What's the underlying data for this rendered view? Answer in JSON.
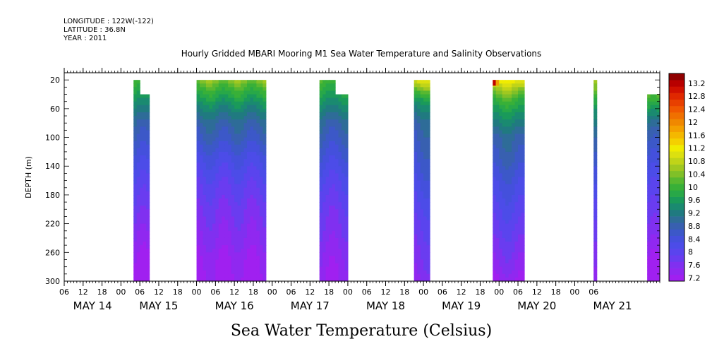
{
  "header": {
    "longitude": "LONGITUDE : 122W(-122)",
    "latitude": "LATITUDE : 36.8N",
    "year": "YEAR : 2011"
  },
  "chart_data": {
    "type": "heatmap",
    "title": "Hourly Gridded MBARI Mooring M1 Sea Water Temperature and Salinity Observations",
    "subtitle": "Sea Water Temperature (Celsius)",
    "xlabel": "",
    "ylabel": "DEPTH (m)",
    "x_range_hours": [
      0,
      189
    ],
    "ylim": [
      300,
      10
    ],
    "y_ticks": [
      20,
      60,
      100,
      140,
      180,
      220,
      260,
      300
    ],
    "hour_tick_labels": [
      "06",
      "12",
      "18",
      "00",
      "06",
      "12",
      "18",
      "00",
      "06",
      "12",
      "18",
      "00",
      "06",
      "12",
      "18",
      "00",
      "06",
      "12",
      "18",
      "00",
      "06",
      "12",
      "18",
      "00",
      "06",
      "12",
      "18",
      "00",
      "06"
    ],
    "date_labels": [
      {
        "label": "MAY 14",
        "hour": 9
      },
      {
        "label": "MAY 15",
        "hour": 30
      },
      {
        "label": "MAY 16",
        "hour": 54
      },
      {
        "label": "MAY 17",
        "hour": 78
      },
      {
        "label": "MAY 18",
        "hour": 102
      },
      {
        "label": "MAY 19",
        "hour": 126
      },
      {
        "label": "MAY 20",
        "hour": 150
      },
      {
        "label": "MAY 21",
        "hour": 174
      }
    ],
    "colorbar": {
      "levels": [
        7.2,
        7.4,
        7.6,
        7.8,
        8,
        8.2,
        8.4,
        8.6,
        8.8,
        9,
        9.2,
        9.4,
        9.6,
        9.8,
        10,
        10.2,
        10.4,
        10.6,
        10.8,
        11,
        11.2,
        11.4,
        11.6,
        11.8,
        12,
        12.2,
        12.4,
        12.6,
        12.8,
        13,
        13.2,
        13.4
      ],
      "tick_labels": [
        "7.2",
        "7.6",
        "8",
        "8.4",
        "8.8",
        "9.2",
        "9.6",
        "10",
        "10.4",
        "10.8",
        "11.2",
        "11.6",
        "12",
        "12.4",
        "12.8",
        "13.2"
      ],
      "colors": [
        "#a020f0",
        "#9028f0",
        "#8030f0",
        "#6a3cf0",
        "#5a44ee",
        "#4c4ce8",
        "#4450dc",
        "#3c58c8",
        "#3860b0",
        "#2e6c98",
        "#207a80",
        "#1a8a70",
        "#1a9a5a",
        "#28a848",
        "#38b038",
        "#58b830",
        "#80c028",
        "#a0c820",
        "#c0d418",
        "#dce010",
        "#f0ec00",
        "#f4d000",
        "#f4b800",
        "#f4a000",
        "#f08800",
        "#f07000",
        "#f05800",
        "#e84000",
        "#e02800",
        "#d01000",
        "#b80000",
        "#900000"
      ]
    },
    "segments": [
      {
        "start": 22,
        "end": 27,
        "top_m": 20,
        "step_at": 24,
        "step_top_m": 40,
        "profile": [
          [
            20,
            10.2
          ],
          [
            40,
            9.8
          ],
          [
            60,
            9.4
          ],
          [
            80,
            9.0
          ],
          [
            100,
            8.8
          ],
          [
            130,
            8.5
          ],
          [
            160,
            8.2
          ],
          [
            200,
            7.9
          ],
          [
            240,
            7.6
          ],
          [
            280,
            7.3
          ],
          [
            300,
            7.2
          ]
        ]
      },
      {
        "start": 42,
        "end": 64,
        "top_m": 20,
        "profile": [
          [
            20,
            10.6
          ],
          [
            30,
            10.2
          ],
          [
            45,
            9.8
          ],
          [
            60,
            9.4
          ],
          [
            80,
            9.0
          ],
          [
            100,
            8.8
          ],
          [
            130,
            8.4
          ],
          [
            160,
            8.1
          ],
          [
            200,
            7.8
          ],
          [
            240,
            7.6
          ],
          [
            270,
            7.4
          ],
          [
            300,
            7.3
          ]
        ]
      },
      {
        "start": 81,
        "end": 90,
        "top_m": 20,
        "notch": {
          "start": 86,
          "end": 91,
          "top_m": 40
        },
        "profile": [
          [
            20,
            10.2
          ],
          [
            40,
            9.8
          ],
          [
            60,
            9.4
          ],
          [
            80,
            9.0
          ],
          [
            100,
            8.8
          ],
          [
            130,
            8.5
          ],
          [
            160,
            8.2
          ],
          [
            200,
            7.9
          ],
          [
            240,
            7.7
          ],
          [
            270,
            7.5
          ],
          [
            300,
            7.4
          ]
        ]
      },
      {
        "start": 111,
        "end": 116,
        "top_m": 20,
        "profile": [
          [
            20,
            11.2
          ],
          [
            30,
            10.6
          ],
          [
            50,
            9.6
          ],
          [
            80,
            9.0
          ],
          [
            110,
            8.8
          ],
          [
            140,
            8.6
          ],
          [
            180,
            8.3
          ],
          [
            220,
            8.0
          ],
          [
            260,
            7.8
          ],
          [
            300,
            7.6
          ]
        ]
      },
      {
        "start": 136,
        "end": 146,
        "top_m": 20,
        "step_at": 146,
        "step_top_m": 40,
        "hot_corner": true,
        "profile": [
          [
            20,
            11.4
          ],
          [
            30,
            10.8
          ],
          [
            45,
            10.2
          ],
          [
            60,
            9.8
          ],
          [
            80,
            9.4
          ],
          [
            100,
            9.0
          ],
          [
            130,
            8.8
          ],
          [
            160,
            8.5
          ],
          [
            200,
            8.2
          ],
          [
            240,
            7.9
          ],
          [
            280,
            7.6
          ],
          [
            300,
            7.4
          ]
        ]
      },
      {
        "start": 168,
        "end": 169,
        "top_m": 20,
        "profile": [
          [
            20,
            10.8
          ],
          [
            40,
            10.2
          ],
          [
            60,
            9.6
          ],
          [
            100,
            9.0
          ],
          [
            140,
            8.6
          ],
          [
            200,
            8.1
          ],
          [
            260,
            7.7
          ],
          [
            300,
            7.5
          ]
        ]
      },
      {
        "start": 185,
        "end": 192,
        "top_m": 40,
        "step_at": 190,
        "step_top_m": 20,
        "profile": [
          [
            20,
            10.8
          ],
          [
            40,
            10.4
          ],
          [
            60,
            9.8
          ],
          [
            80,
            9.2
          ],
          [
            100,
            8.9
          ],
          [
            130,
            8.6
          ],
          [
            160,
            8.3
          ],
          [
            200,
            8.0
          ],
          [
            240,
            7.7
          ],
          [
            270,
            7.4
          ],
          [
            300,
            7.2
          ]
        ]
      }
    ]
  }
}
